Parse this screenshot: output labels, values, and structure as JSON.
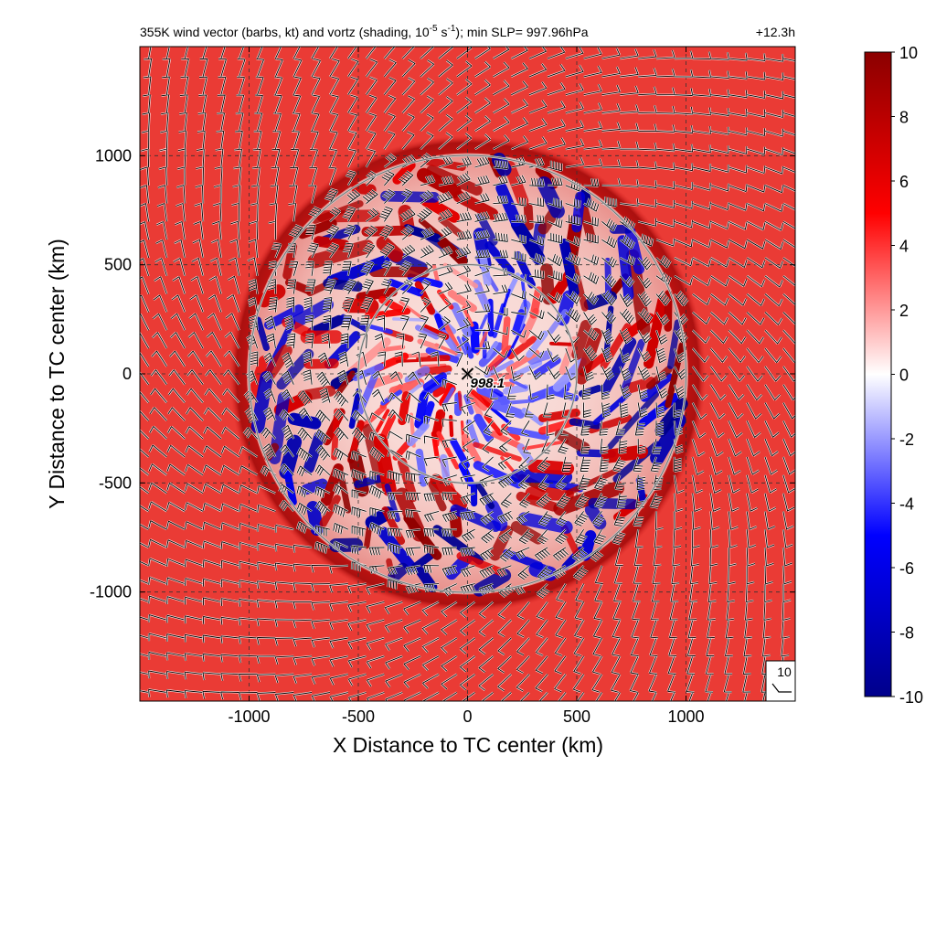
{
  "chart_data": {
    "type": "heatmap",
    "title": "355K wind vector (barbs, kt) and vortz (shading, 10",
    "title_sup": "-5",
    "title_mid": " s",
    "title_sup2": "-1",
    "title_end": "); min SLP= 997.96hPa",
    "time_label": "+12.3h",
    "xlabel": "X Distance to TC center (km)",
    "ylabel": "Y Distance to TC center (km)",
    "xlim": [
      -1500,
      1500
    ],
    "ylim": [
      -1500,
      1500
    ],
    "xticks": [
      -1000,
      -500,
      0,
      500,
      1000
    ],
    "yticks": [
      -1000,
      -500,
      0,
      500,
      1000
    ],
    "xtick_labels": [
      "-1000",
      "-500",
      "0",
      "500",
      "1000"
    ],
    "ytick_labels": [
      "-1000",
      "-500",
      "0",
      "500",
      "1000"
    ],
    "grid": true,
    "range_circles_km": [
      500,
      1000
    ],
    "center_marker": {
      "x": 0,
      "y": 0,
      "label": "998.1"
    },
    "colorbar": {
      "min": -10,
      "max": 10,
      "ticks": [
        10,
        8,
        6,
        4,
        2,
        0,
        -2,
        -4,
        -6,
        -8,
        -10
      ],
      "tick_labels": [
        "10",
        "8",
        "6",
        "4",
        "2",
        "0",
        "-2",
        "-4",
        "-6",
        "-8",
        "-10"
      ],
      "colors": [
        "#00008b",
        "#0000ff",
        "#ffffff",
        "#ff0000",
        "#8b0000"
      ]
    },
    "background_value": 6,
    "reference_barb_label": "10",
    "barb_units": "kt"
  }
}
